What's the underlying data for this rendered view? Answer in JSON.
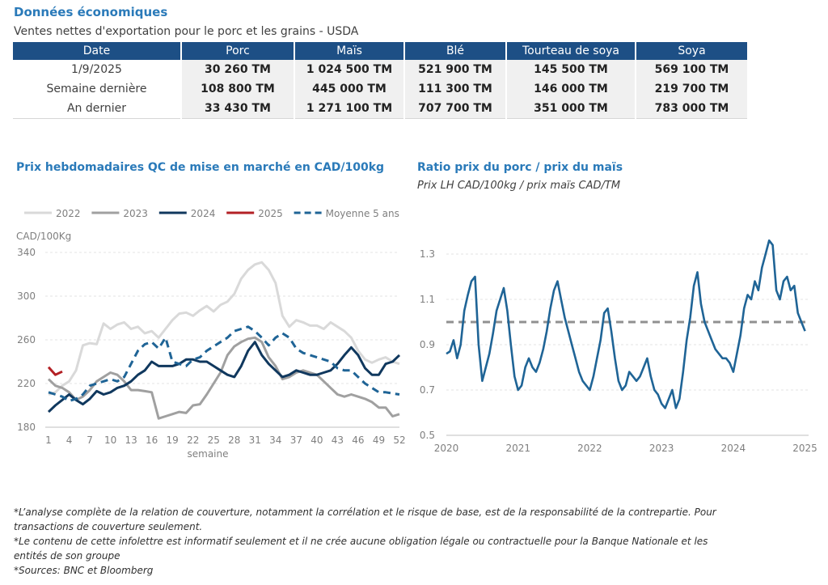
{
  "header": {
    "title": "Données économiques",
    "subtitle": "Ventes nettes d'exportation pour le porc et les grains - USDA"
  },
  "exports_table": {
    "columns": [
      "Date",
      "Porc",
      "Maïs",
      "Blé",
      "Tourteau de soya",
      "Soya"
    ],
    "rows": [
      {
        "label": "1/9/2025",
        "values": [
          "30 260 TM",
          "1 024 500 TM",
          "521 900 TM",
          "145 500 TM",
          "569 100 TM"
        ]
      },
      {
        "label": "Semaine dernière",
        "values": [
          "108 800 TM",
          "445 000 TM",
          "111 300 TM",
          "146 000 TM",
          "219 700 TM"
        ]
      },
      {
        "label": "An dernier",
        "values": [
          "33 430 TM",
          "1 271 100 TM",
          "707 700 TM",
          "351 000 TM",
          "783 000 TM"
        ]
      }
    ]
  },
  "left_chart": {
    "title": "Prix hebdomadaires QC de mise en marché en CAD/100kg"
  },
  "right_chart": {
    "title": "Ratio prix du porc / prix du maïs",
    "subtitle": "Prix LH CAD/100kg / prix maïs CAD/TM"
  },
  "chart_data": [
    {
      "type": "line",
      "ylabel": "CAD/100Kg",
      "xlabel": "semaine",
      "ylim": [
        180,
        340
      ],
      "yticks": [
        180,
        220,
        260,
        300,
        340
      ],
      "xlim": [
        1,
        52
      ],
      "xticks": [
        1,
        4,
        7,
        10,
        13,
        16,
        19,
        22,
        25,
        28,
        31,
        34,
        37,
        40,
        43,
        46,
        49,
        52
      ],
      "grid": "horizontal",
      "legend_position": "top",
      "series": [
        {
          "name": "2022",
          "color": "#d9d9d9",
          "dash": "solid",
          "x": [
            1,
            2,
            3,
            4,
            5,
            6,
            7,
            8,
            9,
            10,
            11,
            12,
            13,
            14,
            15,
            16,
            17,
            18,
            19,
            20,
            21,
            22,
            23,
            24,
            25,
            26,
            27,
            28,
            29,
            30,
            31,
            32,
            33,
            34,
            35,
            36,
            37,
            38,
            39,
            40,
            41,
            42,
            43,
            44,
            45,
            46,
            47,
            48,
            49,
            50,
            51,
            52
          ],
          "values": [
            210,
            212,
            218,
            222,
            232,
            255,
            257,
            256,
            275,
            270,
            274,
            276,
            270,
            272,
            266,
            268,
            262,
            270,
            278,
            284,
            285,
            282,
            287,
            291,
            286,
            292,
            295,
            302,
            316,
            324,
            329,
            331,
            324,
            312,
            282,
            272,
            278,
            276,
            273,
            273,
            270,
            276,
            272,
            268,
            262,
            250,
            242,
            239,
            242,
            244,
            240,
            238
          ]
        },
        {
          "name": "2023",
          "color": "#a0a0a0",
          "dash": "solid",
          "x": [
            1,
            2,
            3,
            4,
            5,
            6,
            7,
            8,
            9,
            10,
            11,
            12,
            13,
            14,
            15,
            16,
            17,
            18,
            19,
            20,
            21,
            22,
            23,
            24,
            25,
            26,
            27,
            28,
            29,
            30,
            31,
            32,
            33,
            34,
            35,
            36,
            37,
            38,
            39,
            40,
            41,
            42,
            43,
            44,
            45,
            46,
            47,
            48,
            49,
            50,
            51,
            52
          ],
          "values": [
            224,
            218,
            216,
            212,
            205,
            208,
            214,
            222,
            226,
            230,
            228,
            222,
            214,
            214,
            213,
            212,
            188,
            190,
            192,
            194,
            193,
            200,
            201,
            210,
            220,
            230,
            246,
            254,
            258,
            261,
            262,
            258,
            244,
            236,
            224,
            226,
            230,
            232,
            230,
            228,
            222,
            216,
            210,
            208,
            210,
            208,
            206,
            203,
            198,
            198,
            190,
            192
          ]
        },
        {
          "name": "2024",
          "color": "#10385e",
          "dash": "solid",
          "x": [
            1,
            2,
            3,
            4,
            5,
            6,
            7,
            8,
            9,
            10,
            11,
            12,
            13,
            14,
            15,
            16,
            17,
            18,
            19,
            20,
            21,
            22,
            23,
            24,
            25,
            26,
            27,
            28,
            29,
            30,
            31,
            32,
            33,
            34,
            35,
            36,
            37,
            38,
            39,
            40,
            41,
            42,
            43,
            44,
            45,
            46,
            47,
            48,
            49,
            50,
            51,
            52
          ],
          "values": [
            194,
            200,
            205,
            210,
            205,
            201,
            206,
            213,
            210,
            212,
            216,
            218,
            222,
            228,
            232,
            240,
            236,
            236,
            236,
            238,
            242,
            242,
            240,
            240,
            236,
            232,
            228,
            226,
            236,
            250,
            258,
            246,
            238,
            232,
            226,
            228,
            232,
            230,
            228,
            228,
            230,
            232,
            238,
            246,
            253,
            246,
            234,
            228,
            228,
            238,
            240,
            246
          ]
        },
        {
          "name": "2025",
          "color": "#b32025",
          "dash": "solid",
          "x": [
            1,
            2,
            3
          ],
          "values": [
            235,
            228,
            231
          ]
        },
        {
          "name": "Moyenne 5 ans",
          "color": "#1f6496",
          "dash": "dashed",
          "x": [
            1,
            2,
            3,
            4,
            5,
            6,
            7,
            8,
            9,
            10,
            11,
            12,
            13,
            14,
            15,
            16,
            17,
            18,
            19,
            20,
            21,
            22,
            23,
            24,
            25,
            26,
            27,
            28,
            29,
            30,
            31,
            32,
            33,
            34,
            35,
            36,
            37,
            38,
            39,
            40,
            41,
            42,
            43,
            44,
            45,
            46,
            47,
            48,
            49,
            50,
            51,
            52
          ],
          "values": [
            212,
            210,
            208,
            204,
            206,
            210,
            218,
            220,
            222,
            224,
            222,
            226,
            238,
            250,
            256,
            258,
            252,
            262,
            240,
            238,
            236,
            242,
            244,
            250,
            254,
            258,
            262,
            268,
            270,
            272,
            268,
            262,
            255,
            262,
            266,
            262,
            252,
            248,
            246,
            244,
            242,
            240,
            234,
            232,
            232,
            226,
            220,
            216,
            212,
            212,
            211,
            210
          ]
        }
      ]
    },
    {
      "type": "line",
      "title": "Ratio prix du porc / prix du maïs",
      "ylim": [
        0.5,
        1.4
      ],
      "yticks": [
        0.5,
        0.7,
        0.9,
        1.1,
        1.3
      ],
      "xlim": [
        2020.0,
        2025.05
      ],
      "xticks": [
        "2020",
        "2021",
        "2022",
        "2023",
        "2024",
        "2025"
      ],
      "grid": "horizontal",
      "reference_line": {
        "value": 1.0,
        "color": "#909090",
        "dash": "dashed"
      },
      "series": [
        {
          "color": "#1f6496",
          "x": [
            2020.0,
            2020.05,
            2020.1,
            2020.15,
            2020.2,
            2020.25,
            2020.3,
            2020.35,
            2020.4,
            2020.45,
            2020.5,
            2020.55,
            2020.6,
            2020.65,
            2020.7,
            2020.75,
            2020.8,
            2020.85,
            2020.9,
            2020.95,
            2021.0,
            2021.05,
            2021.1,
            2021.15,
            2021.2,
            2021.25,
            2021.3,
            2021.35,
            2021.4,
            2021.45,
            2021.5,
            2021.55,
            2021.6,
            2021.65,
            2021.7,
            2021.75,
            2021.8,
            2021.85,
            2021.9,
            2021.95,
            2022.0,
            2022.05,
            2022.1,
            2022.15,
            2022.2,
            2022.25,
            2022.3,
            2022.35,
            2022.4,
            2022.45,
            2022.5,
            2022.55,
            2022.6,
            2022.65,
            2022.7,
            2022.75,
            2022.8,
            2022.85,
            2022.9,
            2022.95,
            2023.0,
            2023.05,
            2023.1,
            2023.15,
            2023.2,
            2023.25,
            2023.3,
            2023.35,
            2023.4,
            2023.45,
            2023.5,
            2023.55,
            2023.6,
            2023.65,
            2023.7,
            2023.75,
            2023.8,
            2023.85,
            2023.9,
            2023.95,
            2024.0,
            2024.05,
            2024.1,
            2024.15,
            2024.2,
            2024.25,
            2024.3,
            2024.35,
            2024.4,
            2024.45,
            2024.5,
            2024.55,
            2024.6,
            2024.65,
            2024.7,
            2024.75,
            2024.8,
            2024.85,
            2024.9,
            2024.95,
            2025.0
          ],
          "values": [
            0.86,
            0.87,
            0.92,
            0.84,
            0.9,
            1.05,
            1.12,
            1.18,
            1.2,
            0.9,
            0.74,
            0.8,
            0.86,
            0.95,
            1.05,
            1.1,
            1.15,
            1.05,
            0.9,
            0.76,
            0.7,
            0.72,
            0.8,
            0.84,
            0.8,
            0.78,
            0.82,
            0.88,
            0.96,
            1.06,
            1.14,
            1.18,
            1.1,
            1.02,
            0.96,
            0.9,
            0.84,
            0.78,
            0.74,
            0.72,
            0.7,
            0.76,
            0.84,
            0.92,
            1.04,
            1.06,
            0.96,
            0.84,
            0.74,
            0.7,
            0.72,
            0.78,
            0.76,
            0.74,
            0.76,
            0.8,
            0.84,
            0.76,
            0.7,
            0.68,
            0.64,
            0.62,
            0.66,
            0.7,
            0.62,
            0.66,
            0.78,
            0.92,
            1.02,
            1.16,
            1.22,
            1.08,
            1.0,
            0.96,
            0.92,
            0.88,
            0.86,
            0.84,
            0.84,
            0.82,
            0.78,
            0.86,
            0.94,
            1.06,
            1.12,
            1.1,
            1.18,
            1.14,
            1.24,
            1.3,
            1.36,
            1.34,
            1.14,
            1.1,
            1.18,
            1.2,
            1.14,
            1.16,
            1.04,
            1.0,
            0.96
          ]
        }
      ]
    }
  ],
  "footnotes": [
    "*L’analyse complète de la relation de couverture, notamment la corrélation et le risque de base, est de la responsabilité de la contrepartie. Pour transactions de couverture seulement.",
    "*Le contenu de cette infolettre est informatif seulement et il ne crée aucune obligation légale ou contractuelle pour la Banque Nationale et les entités de son groupe",
    "*Sources: BNC et Bloomberg"
  ]
}
